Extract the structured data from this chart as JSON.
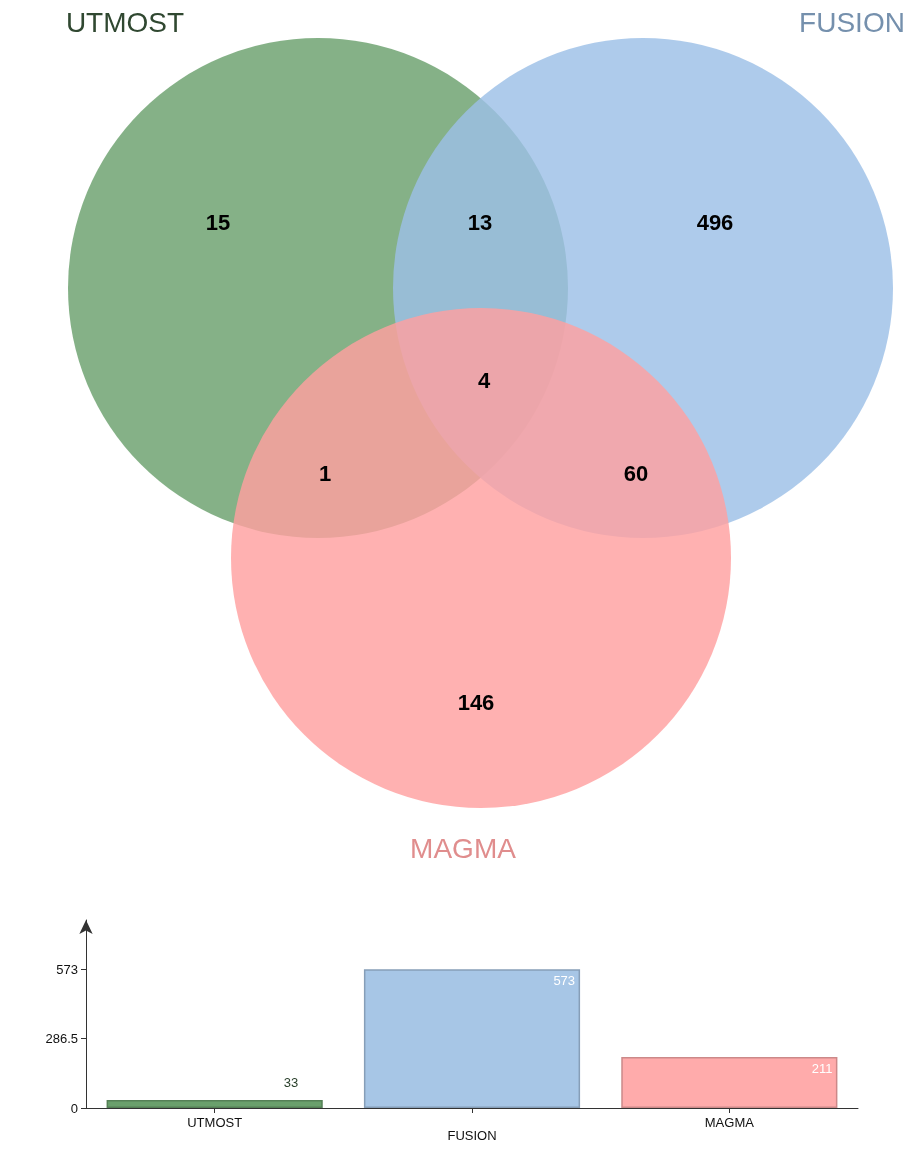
{
  "chart_data": [
    {
      "type": "other",
      "categories": [
        "UTMOST",
        "FUSION",
        "MAGMA"
      ],
      "colors": [
        "#6aa06c",
        "#9cc0e6",
        "#ffa0a0"
      ],
      "annotations": [
        "15",
        "13",
        "496",
        "4",
        "1",
        "60",
        "146"
      ]
    },
    {
      "type": "bar",
      "categories": [
        "UTMOST",
        "FUSION",
        "MAGMA"
      ],
      "values": [
        33,
        573,
        211
      ],
      "colors": [
        "#6aa06c",
        "#a7c6e6",
        "#ffabab"
      ],
      "ylim": [
        0,
        776
      ],
      "yticks": [
        0,
        286.5,
        573
      ],
      "data_labels": true,
      "grid": false
    }
  ]
}
